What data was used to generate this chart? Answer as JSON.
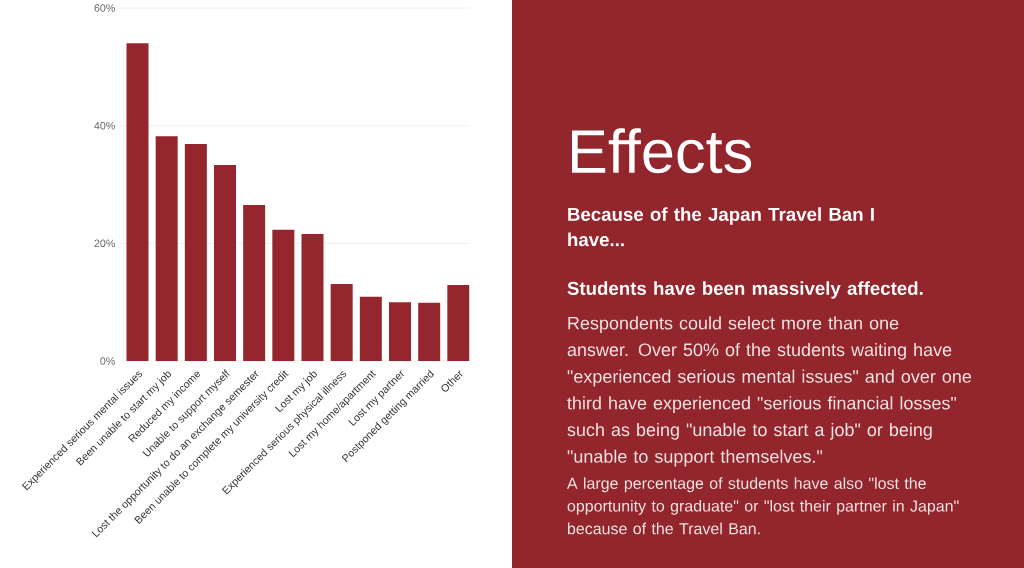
{
  "chart_data": {
    "type": "bar",
    "title": "Effects",
    "subtitle": "Because of the Japan Travel Ban I have...",
    "categories": [
      "Experienced serious mental issues",
      "Been unable to start my job",
      "Reduced my income",
      "Unable to support myself",
      "Lost the opportunity to do an exchange semester",
      "Been unable to complete my university credit",
      "Lost my job",
      "Experienced serious physical illness",
      "Lost my home/apartment",
      "Lost my partner",
      "Postponed getting married",
      "Other"
    ],
    "values": [
      54,
      38.2,
      36.9,
      33.3,
      26.5,
      22.3,
      21.6,
      13.1,
      10.9,
      10,
      9.9,
      12.9
    ],
    "color": "#96262d",
    "ylim": [
      0,
      60
    ],
    "yticks": [
      {
        "value": 0,
        "label": "0%"
      },
      {
        "value": 20,
        "label": "20%"
      },
      {
        "value": 40,
        "label": "40%"
      },
      {
        "value": 60,
        "label": "60%"
      }
    ],
    "grid": "y",
    "annotations": [
      "Students have been massively affected.",
      "Respondents could select more than one answer. Over 50% of the students waiting have \"experienced serious mental issues\" and over one third have experienced \"serious financial losses\" such as being \"unable to start a job\" or being \"unable to support themselves.\"",
      "A large percentage of students have also \"lost the opportunity to graduate\" or \"lost their partner in Japan\" because of the Travel Ban."
    ]
  }
}
